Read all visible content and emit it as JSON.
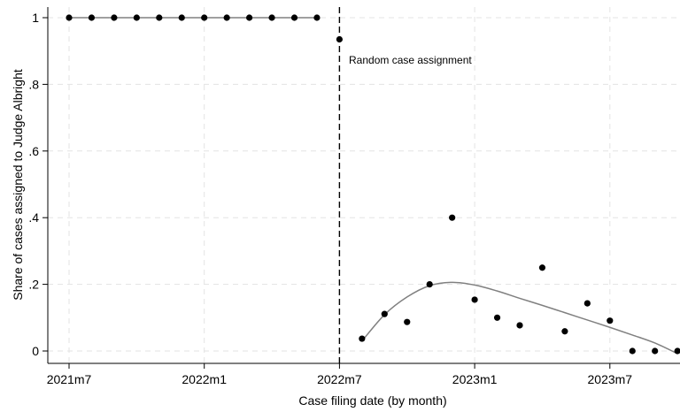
{
  "chart_data": {
    "type": "scatter",
    "xlabel": "Case filing date (by month)",
    "ylabel": "Share of cases assigned to Judge Albright",
    "x_ticks": [
      "2021m7",
      "2022m1",
      "2022m7",
      "2023m1",
      "2023m7"
    ],
    "y_ticks": [
      "0",
      ".2",
      ".4",
      ".6",
      ".8",
      "1"
    ],
    "xlim": [
      "2021m7",
      "2023m10"
    ],
    "ylim": [
      0,
      1
    ],
    "grid": true,
    "legend": "none",
    "annotation": {
      "text": "Random case assignment",
      "x": "2022m7"
    },
    "series": [
      {
        "kind": "points",
        "color": "#000000",
        "points": [
          {
            "x": "2021m7",
            "y": 1
          },
          {
            "x": "2021m8",
            "y": 1
          },
          {
            "x": "2021m9",
            "y": 1
          },
          {
            "x": "2021m10",
            "y": 1
          },
          {
            "x": "2021m11",
            "y": 1
          },
          {
            "x": "2021m12",
            "y": 1
          },
          {
            "x": "2022m1",
            "y": 1
          },
          {
            "x": "2022m2",
            "y": 1
          },
          {
            "x": "2022m3",
            "y": 1
          },
          {
            "x": "2022m4",
            "y": 1
          },
          {
            "x": "2022m5",
            "y": 1
          },
          {
            "x": "2022m6",
            "y": 1
          },
          {
            "x": "2022m7",
            "y": 0.935
          },
          {
            "x": "2022m8",
            "y": 0.037
          },
          {
            "x": "2022m9",
            "y": 0.111
          },
          {
            "x": "2022m10",
            "y": 0.087
          },
          {
            "x": "2022m11",
            "y": 0.2
          },
          {
            "x": "2022m12",
            "y": 0.4
          },
          {
            "x": "2023m1",
            "y": 0.154
          },
          {
            "x": "2023m2",
            "y": 0.1
          },
          {
            "x": "2023m3",
            "y": 0.077
          },
          {
            "x": "2023m4",
            "y": 0.25
          },
          {
            "x": "2023m5",
            "y": 0.059
          },
          {
            "x": "2023m6",
            "y": 0.143
          },
          {
            "x": "2023m7",
            "y": 0.091
          },
          {
            "x": "2023m8",
            "y": 0
          },
          {
            "x": "2023m9",
            "y": 0
          },
          {
            "x": "2023m10",
            "y": 0
          }
        ]
      },
      {
        "kind": "fit-line",
        "color": "#808080",
        "points": [
          {
            "x": "2021m7",
            "y": 1
          },
          {
            "x": "2022m6",
            "y": 1
          }
        ]
      },
      {
        "kind": "fit-line",
        "color": "#808080",
        "points": [
          {
            "x": "2022m8",
            "y": 0.03
          },
          {
            "x": "2022m9",
            "y": 0.109
          },
          {
            "x": "2022m10",
            "y": 0.162
          },
          {
            "x": "2022m11",
            "y": 0.196
          },
          {
            "x": "2022m12",
            "y": 0.206
          },
          {
            "x": "2023m1",
            "y": 0.198
          },
          {
            "x": "2023m2",
            "y": 0.18
          },
          {
            "x": "2023m3",
            "y": 0.158
          },
          {
            "x": "2023m4",
            "y": 0.137
          },
          {
            "x": "2023m5",
            "y": 0.115
          },
          {
            "x": "2023m6",
            "y": 0.093
          },
          {
            "x": "2023m7",
            "y": 0.071
          },
          {
            "x": "2023m8",
            "y": 0.048
          },
          {
            "x": "2023m9",
            "y": 0.024
          },
          {
            "x": "2023m10",
            "y": -0.008
          }
        ]
      }
    ]
  }
}
